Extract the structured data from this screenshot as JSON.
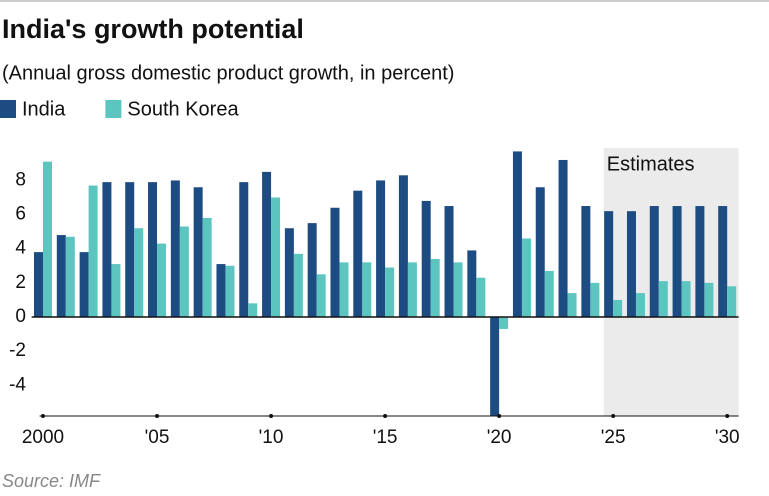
{
  "chart_data": {
    "type": "bar",
    "title": "India's growth potential",
    "subtitle": "(Annual gross domestic product growth, in percent)",
    "source": "Source: IMF",
    "annotation": "Estimates",
    "shaded_from": "'25",
    "categories": [
      "2000",
      null,
      null,
      null,
      null,
      "'05",
      null,
      null,
      null,
      null,
      "'10",
      null,
      null,
      null,
      null,
      "'15",
      null,
      null,
      null,
      null,
      "'20",
      null,
      null,
      null,
      null,
      "'25",
      null,
      null,
      null,
      null,
      "'30"
    ],
    "series": [
      {
        "name": "India",
        "color": "#1d4c82",
        "values": [
          3.8,
          4.8,
          3.8,
          7.9,
          7.9,
          7.9,
          8.0,
          7.6,
          3.1,
          7.9,
          8.5,
          5.2,
          5.5,
          6.4,
          7.4,
          8.0,
          8.3,
          6.8,
          6.5,
          3.9,
          -5.8,
          9.7,
          7.6,
          9.2,
          6.5,
          6.2,
          6.2,
          6.5,
          6.5,
          6.5,
          6.5
        ]
      },
      {
        "name": "South Korea",
        "color": "#5cc5c0",
        "values": [
          9.1,
          4.7,
          7.7,
          3.1,
          5.2,
          4.3,
          5.3,
          5.8,
          3.0,
          0.8,
          7.0,
          3.7,
          2.5,
          3.2,
          3.2,
          2.9,
          3.2,
          3.4,
          3.2,
          2.3,
          -0.7,
          4.6,
          2.7,
          1.4,
          2.0,
          1.0,
          1.4,
          2.1,
          2.1,
          2.0,
          1.8
        ]
      }
    ],
    "ylim": [
      -5.8,
      9.9
    ],
    "yticks": [
      -4,
      -2,
      0,
      2,
      4,
      6,
      8
    ],
    "grid": false
  }
}
